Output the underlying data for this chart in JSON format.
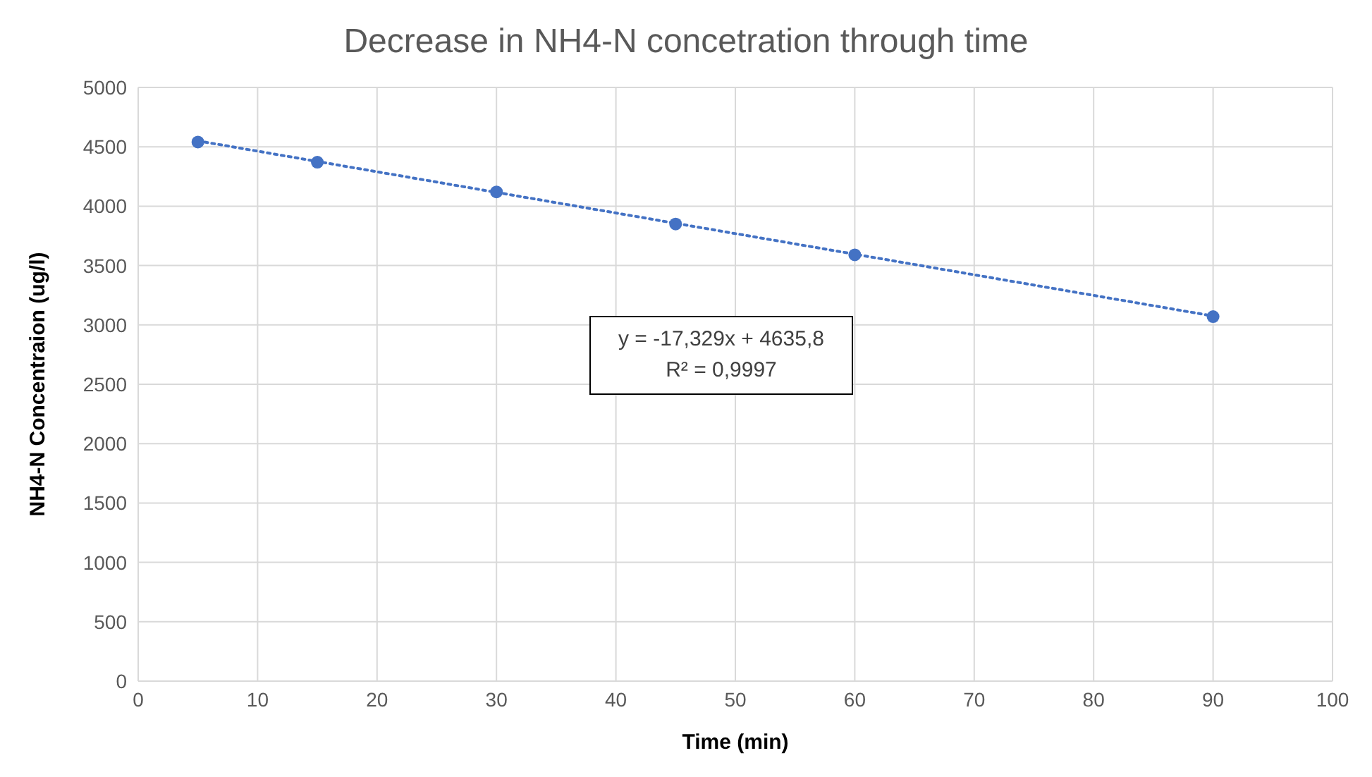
{
  "chart_data": {
    "type": "scatter",
    "title": "Decrease in NH4-N concetration through time",
    "xlabel": "Time (min)",
    "ylabel": "NH4-N Concentraion (ug/l)",
    "x": [
      5,
      15,
      30,
      45,
      60,
      90
    ],
    "series": [
      {
        "color": "#4472c4",
        "marker": "circle",
        "values": [
          4540,
          4370,
          4120,
          3850,
          3590,
          3070
        ]
      },
      {
        "type": "line",
        "color": "#4472c4",
        "marker": "none",
        "line_style": "dotted",
        "x": [
          5,
          90
        ],
        "values": [
          4550,
          3075
        ]
      }
    ],
    "annotations": [
      "y = -17,329x + 4635,8",
      "R² = 0,9997"
    ],
    "xlim": [
      0,
      100
    ],
    "xticks": [
      0,
      10,
      20,
      30,
      40,
      50,
      60,
      70,
      80,
      90,
      100
    ],
    "ylim": [
      0,
      5000
    ],
    "yticks": [
      0,
      500,
      1000,
      1500,
      2000,
      2500,
      3000,
      3500,
      4000,
      4500,
      5000
    ],
    "grid": true,
    "legend": false
  }
}
